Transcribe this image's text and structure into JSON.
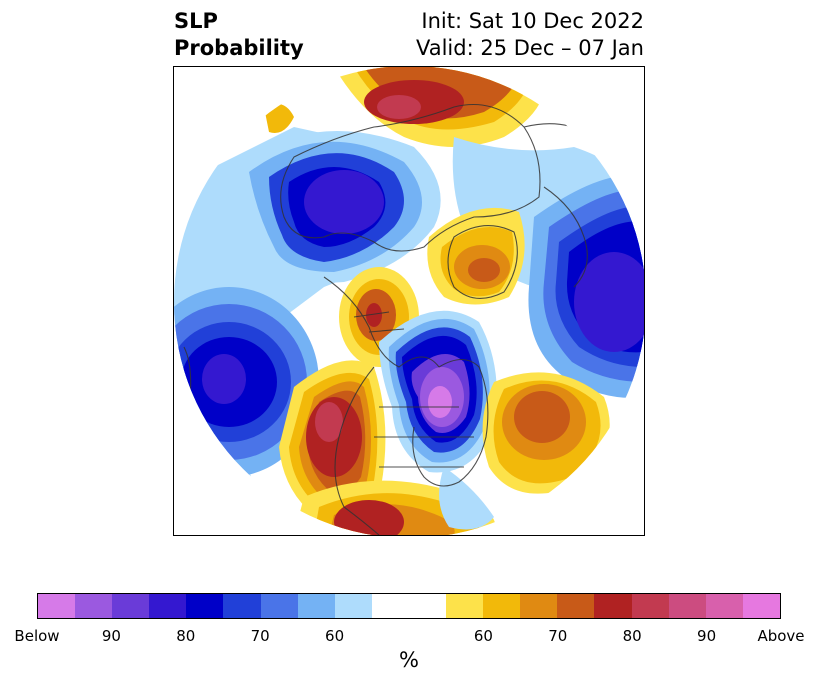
{
  "title": {
    "left_line1": "SLP",
    "left_line2": "Probability",
    "right_line1": "Init: Sat 10 Dec 2022",
    "right_line2": "Valid: 25 Dec – 07 Jan"
  },
  "colorbar": {
    "unit": "%",
    "colors": [
      "#d67ae8",
      "#9b59e0",
      "#6a3bd8",
      "#3418d0",
      "#0000c8",
      "#2140d8",
      "#4a74e8",
      "#74b2f4",
      "#aedcfc",
      "#ffffff",
      "#ffffff",
      "#fde24a",
      "#f2b90a",
      "#e08a12",
      "#c85a18",
      "#b02222",
      "#c23a50",
      "#cc4c80",
      "#d860ac",
      "#e678e0"
    ],
    "ticks": [
      "Below",
      "90",
      "80",
      "70",
      "60",
      "60",
      "70",
      "80",
      "90",
      "Above"
    ]
  },
  "map": {
    "projection": "north polar stereographic",
    "variable": "SLP"
  }
}
